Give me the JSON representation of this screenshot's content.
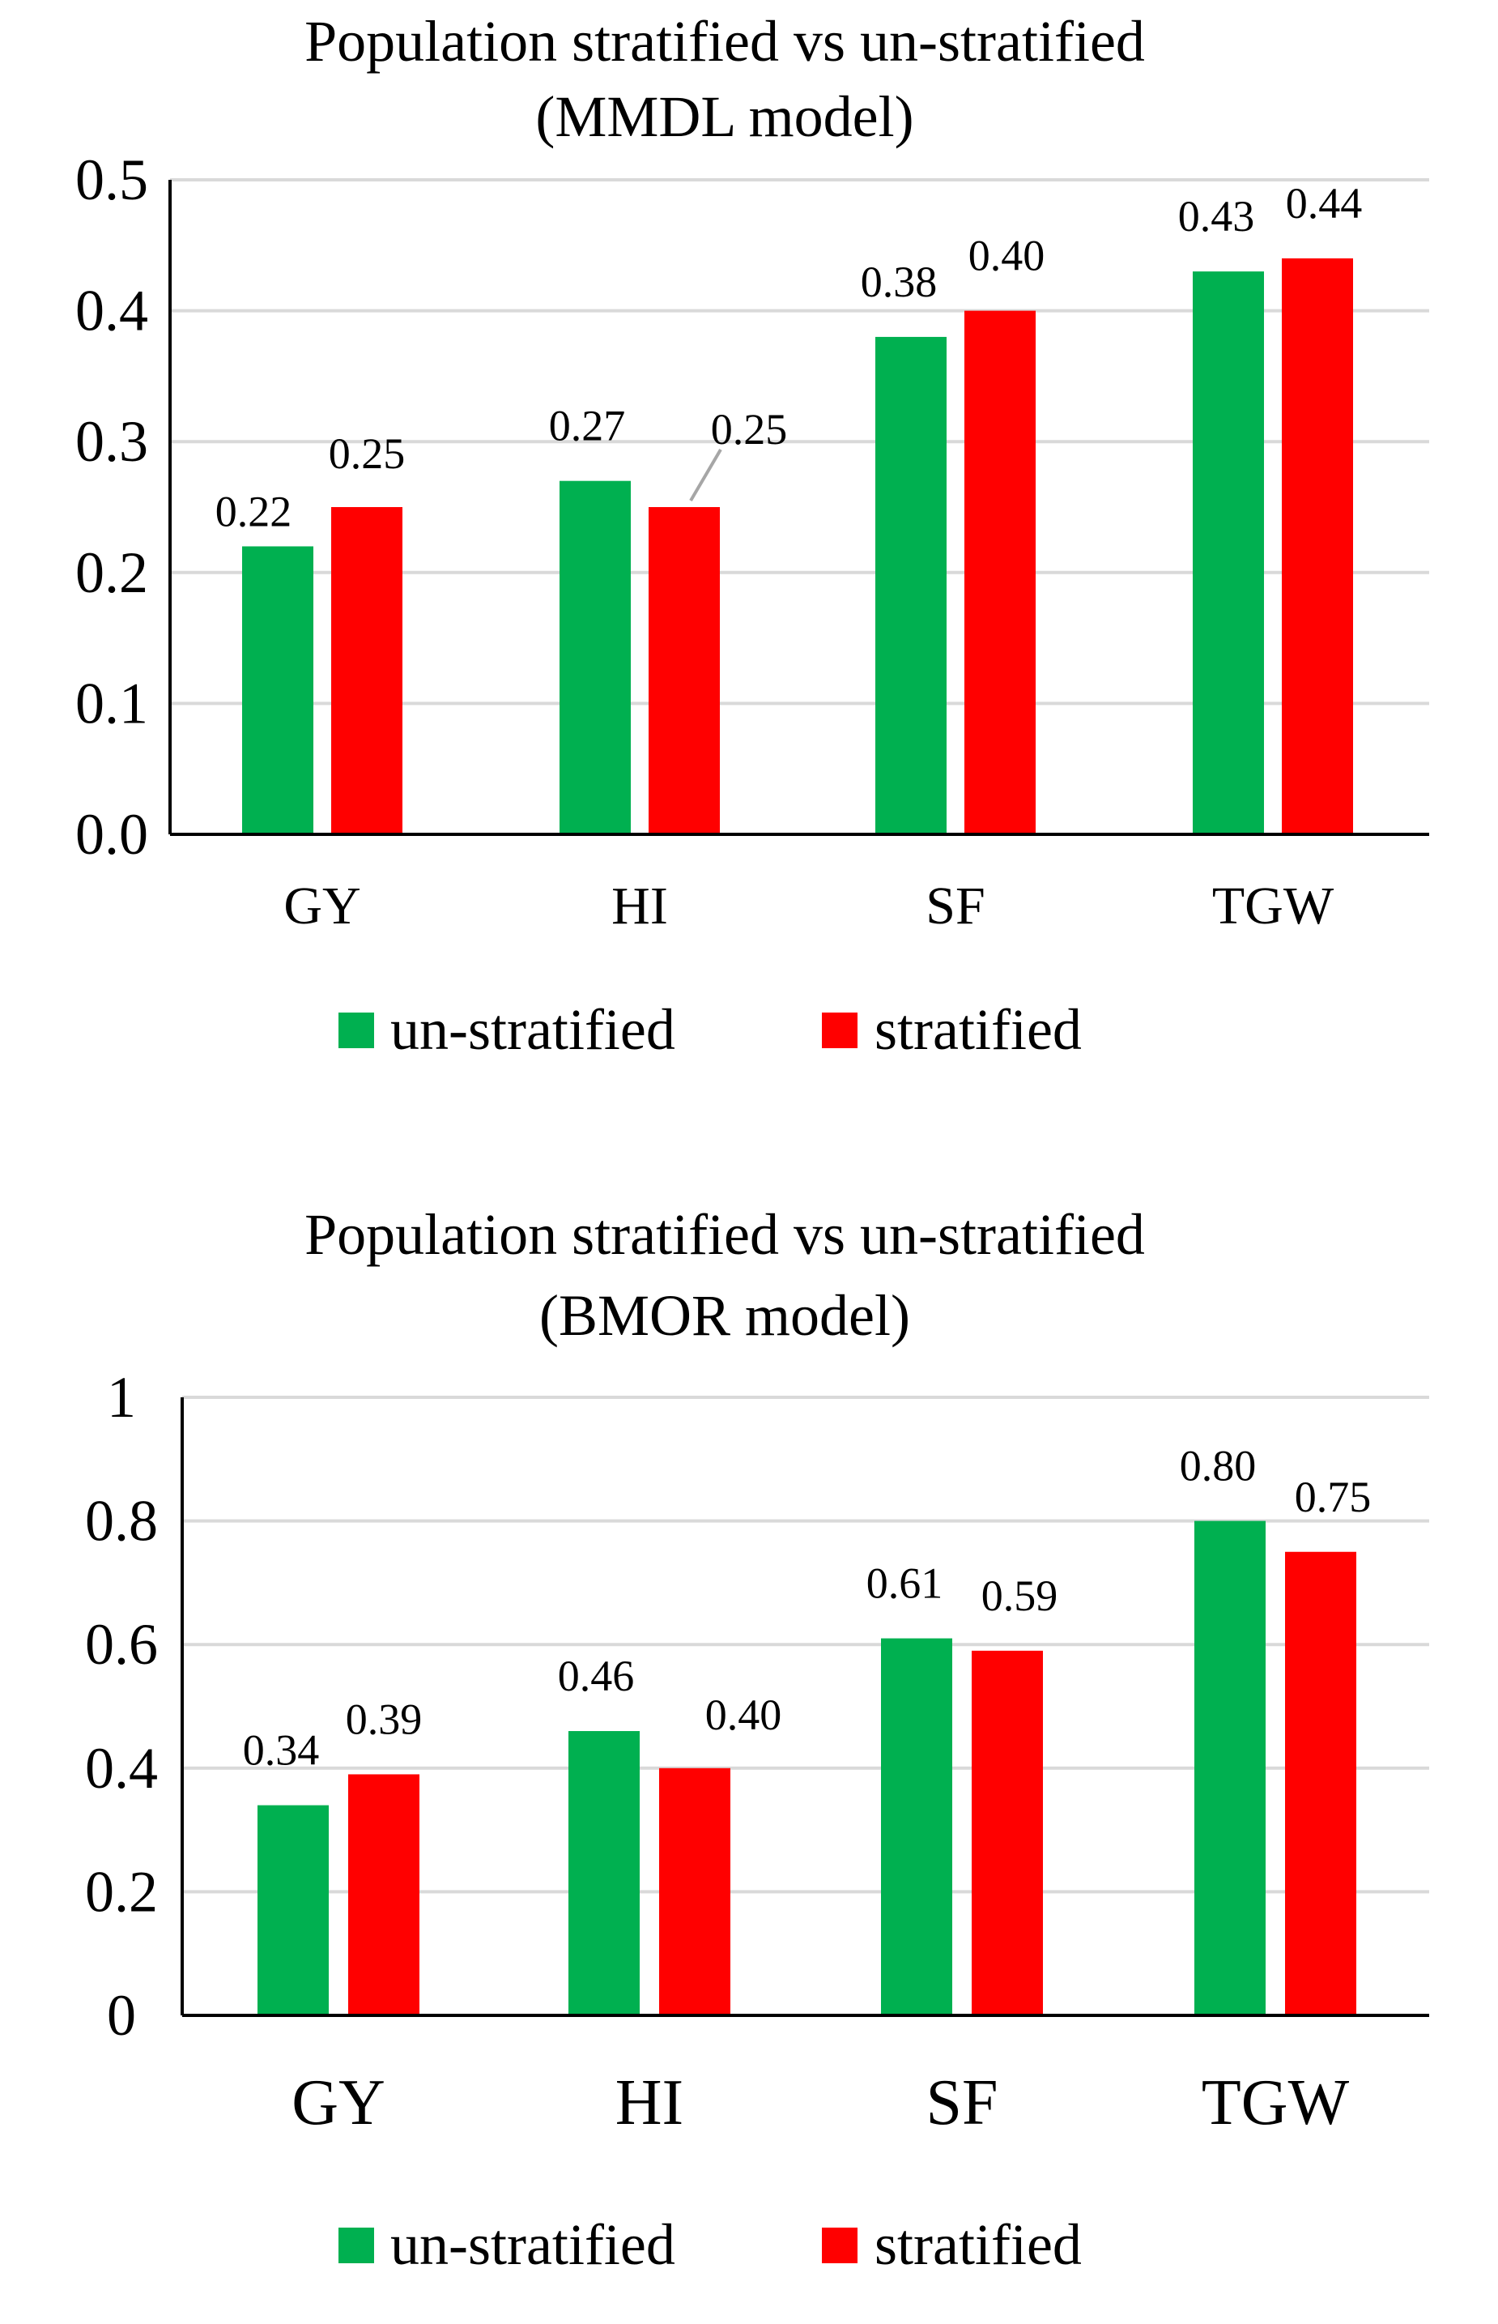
{
  "colors": {
    "unstratified": "#00b050",
    "stratified": "#ff0000",
    "axis": "#000000",
    "grid": "#d9d9d9",
    "leader": "#a6a6a6"
  },
  "chart_data": [
    {
      "type": "bar",
      "title_lines": [
        "Population stratified vs un-stratified",
        "(MMDL model)"
      ],
      "categories": [
        "GY",
        "HI",
        "SF",
        "TGW"
      ],
      "series": [
        {
          "name": "un-stratified",
          "values": [
            0.22,
            0.27,
            0.38,
            0.43
          ],
          "labels": [
            "0.22",
            "0.27",
            "0.38",
            "0.43"
          ]
        },
        {
          "name": "stratified",
          "values": [
            0.25,
            0.25,
            0.4,
            0.44
          ],
          "labels": [
            "0.25",
            "0.25",
            "0.40",
            "0.44"
          ]
        }
      ],
      "ylim": [
        0,
        0.5
      ],
      "yticks": [
        0.0,
        0.1,
        0.2,
        0.3,
        0.4,
        0.5
      ],
      "ytick_labels": [
        "0.0",
        "0.1",
        "0.2",
        "0.3",
        "0.4",
        "0.5"
      ],
      "xlabel": "",
      "ylabel": "",
      "grid": true,
      "legend": "bottom"
    },
    {
      "type": "bar",
      "title_lines": [
        "Population stratified vs un-stratified",
        "(BMOR model)"
      ],
      "categories": [
        "GY",
        "HI",
        "SF",
        "TGW"
      ],
      "series": [
        {
          "name": "un-stratified",
          "values": [
            0.34,
            0.46,
            0.61,
            0.8
          ],
          "labels": [
            "0.34",
            "0.46",
            "0.61",
            "0.80"
          ]
        },
        {
          "name": "stratified",
          "values": [
            0.39,
            0.4,
            0.59,
            0.75
          ],
          "labels": [
            "0.39",
            "0.40",
            "0.59",
            "0.75"
          ]
        }
      ],
      "ylim": [
        0,
        1
      ],
      "yticks": [
        0,
        0.2,
        0.4,
        0.6,
        0.8,
        1
      ],
      "ytick_labels": [
        "0",
        "0.2",
        "0.4",
        "0.6",
        "0.8",
        "1"
      ],
      "xlabel": "",
      "ylabel": "",
      "grid": true,
      "legend": "bottom"
    }
  ]
}
